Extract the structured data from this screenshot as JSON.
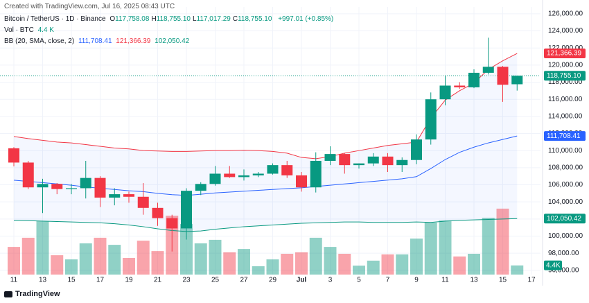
{
  "watermark": "Created with TradingView.com, Jul 16, 2025 08:43 UTC",
  "legend": {
    "symbol": "Bitcoin / TetherUS · 1D · Binance",
    "ohlc": [
      {
        "key": "O",
        "value": "117,758.08"
      },
      {
        "key": "H",
        "value": "118,755.10"
      },
      {
        "key": "L",
        "value": "117,017.29"
      },
      {
        "key": "C",
        "value": "118,755.10"
      }
    ],
    "change": "+997.01 (+0.85%)",
    "vol_label": "Vol · BTC",
    "vol_value": "4.4 K",
    "bb_label": "BB (20, SMA, close, 2)",
    "bb_values": [
      "111,708.41",
      "121,366.39",
      "102,050.42"
    ]
  },
  "footer": "TradingView",
  "chart_data": {
    "type": "candlestick",
    "categories": [
      "11",
      null,
      "13",
      null,
      "15",
      null,
      "17",
      null,
      "19",
      null,
      "21",
      null,
      "23",
      null,
      "25",
      null,
      "27",
      null,
      "29",
      null,
      "Jul",
      null,
      "3",
      null,
      "5",
      null,
      "7",
      null,
      "9",
      null,
      "11",
      null,
      "13",
      null,
      "15",
      null,
      "17"
    ],
    "open": [
      110270,
      108600,
      105700,
      106100,
      105500,
      105600,
      106800,
      104500,
      104900,
      104600,
      103300,
      102100,
      100900,
      105300,
      106100,
      107300,
      106900,
      107100,
      107300,
      108300,
      107100,
      105700,
      108800,
      109600,
      108300,
      108500,
      109300,
      108300,
      108900,
      111300,
      116000,
      117600,
      117400,
      119100,
      119800,
      117758.08,
      null
    ],
    "high": [
      110400,
      108800,
      106700,
      106200,
      106100,
      108800,
      107000,
      105600,
      105200,
      106200,
      103900,
      102500,
      105600,
      106300,
      108200,
      108200,
      107800,
      107500,
      108500,
      108800,
      107500,
      109800,
      110500,
      109700,
      108500,
      109700,
      109700,
      109200,
      111900,
      116800,
      118800,
      118000,
      119500,
      123200,
      119900,
      118755.1,
      null
    ],
    "low": [
      108150,
      105500,
      102700,
      104900,
      104900,
      104400,
      103400,
      103600,
      103900,
      102500,
      101200,
      98200,
      99600,
      104800,
      105900,
      106800,
      106500,
      106900,
      107200,
      106800,
      105200,
      105100,
      108300,
      107300,
      107900,
      108200,
      107500,
      107500,
      108400,
      110700,
      115300,
      117200,
      117300,
      118900,
      115700,
      117017.29,
      null
    ],
    "close": [
      108600,
      105700,
      106100,
      105500,
      105600,
      106800,
      104500,
      104900,
      104600,
      103300,
      102100,
      100900,
      105300,
      106100,
      107300,
      106900,
      107100,
      107300,
      108300,
      107100,
      105700,
      108800,
      109600,
      108300,
      108500,
      109300,
      108300,
      108900,
      111300,
      116000,
      117600,
      117400,
      119100,
      119800,
      117700,
      118755.1,
      null
    ],
    "up_color": "#089981",
    "down_color": "#f23645",
    "last_price_label": "118,755.10",
    "volume": {
      "values": [
        13.3,
        17.7,
        25.7,
        9.3,
        7.3,
        15,
        17.7,
        14.3,
        8,
        16.3,
        11.3,
        28.3,
        24.3,
        15,
        16.7,
        10.7,
        12.3,
        4,
        7.3,
        10,
        10.7,
        17.7,
        13.3,
        10,
        4.3,
        6.7,
        9.7,
        9.7,
        17.3,
        25,
        26,
        8.7,
        10,
        27.3,
        31.7,
        4.4,
        null
      ],
      "last_label": "4.4K"
    },
    "bands": [
      {
        "name": "upper",
        "color": "#f23645",
        "last_label": "121,366.39",
        "values": [
          111650,
          111400,
          111200,
          111000,
          110900,
          110700,
          110500,
          110300,
          110200,
          110000,
          109950,
          109900,
          109900,
          109950,
          110000,
          110000,
          110050,
          110000,
          109900,
          109700,
          109200,
          109050,
          109300,
          109700,
          110000,
          110300,
          110600,
          110800,
          111000,
          113800,
          115900,
          117000,
          117900,
          119500,
          120500,
          121366.39,
          null
        ]
      },
      {
        "name": "basis",
        "color": "#2962ff",
        "last_label": "111,708.41",
        "values": [
          106540,
          106400,
          106250,
          106100,
          105950,
          105750,
          105600,
          105450,
          105300,
          105200,
          105000,
          104850,
          104750,
          104900,
          105050,
          105150,
          105250,
          105350,
          105450,
          105550,
          105650,
          105800,
          105950,
          106100,
          106250,
          106400,
          106550,
          106700,
          106950,
          107900,
          108950,
          109800,
          110400,
          110900,
          111300,
          111708.41,
          null
        ]
      },
      {
        "name": "lower",
        "color": "#089981",
        "last_label": "102,050.42",
        "values": [
          101840,
          101800,
          101750,
          101700,
          101650,
          101600,
          101550,
          101450,
          101300,
          101100,
          100850,
          100650,
          100540,
          100600,
          100800,
          100950,
          101100,
          101200,
          101300,
          101400,
          101500,
          101550,
          101600,
          101650,
          101650,
          101600,
          101600,
          101600,
          101650,
          101600,
          101750,
          101850,
          101900,
          101950,
          102000,
          102050.42,
          null
        ]
      }
    ],
    "ylim": [
      95500,
      126800
    ],
    "yticks": [
      {
        "value": 96000,
        "label": "96,000.00"
      },
      {
        "value": 98000,
        "label": "98,000.00"
      },
      {
        "value": 100000,
        "label": "100,000.00"
      },
      {
        "value": 102000,
        "label": "102,000.00"
      },
      {
        "value": 104000,
        "label": "104,000.00"
      },
      {
        "value": 106000,
        "label": "106,000.00"
      },
      {
        "value": 108000,
        "label": "108,000.00"
      },
      {
        "value": 110000,
        "label": "110,000.00"
      },
      {
        "value": 112000,
        "label": "112,000.00"
      },
      {
        "value": 114000,
        "label": "114,000.00"
      },
      {
        "value": 116000,
        "label": "116,000.00"
      },
      {
        "value": 118000,
        "label": "118,000.00"
      },
      {
        "value": 120000,
        "label": "120,000.00"
      },
      {
        "value": 122000,
        "label": "122,000.00"
      },
      {
        "value": 124000,
        "label": "124,000.00"
      },
      {
        "value": 126000,
        "label": "126,000.00"
      }
    ],
    "grid": true
  }
}
